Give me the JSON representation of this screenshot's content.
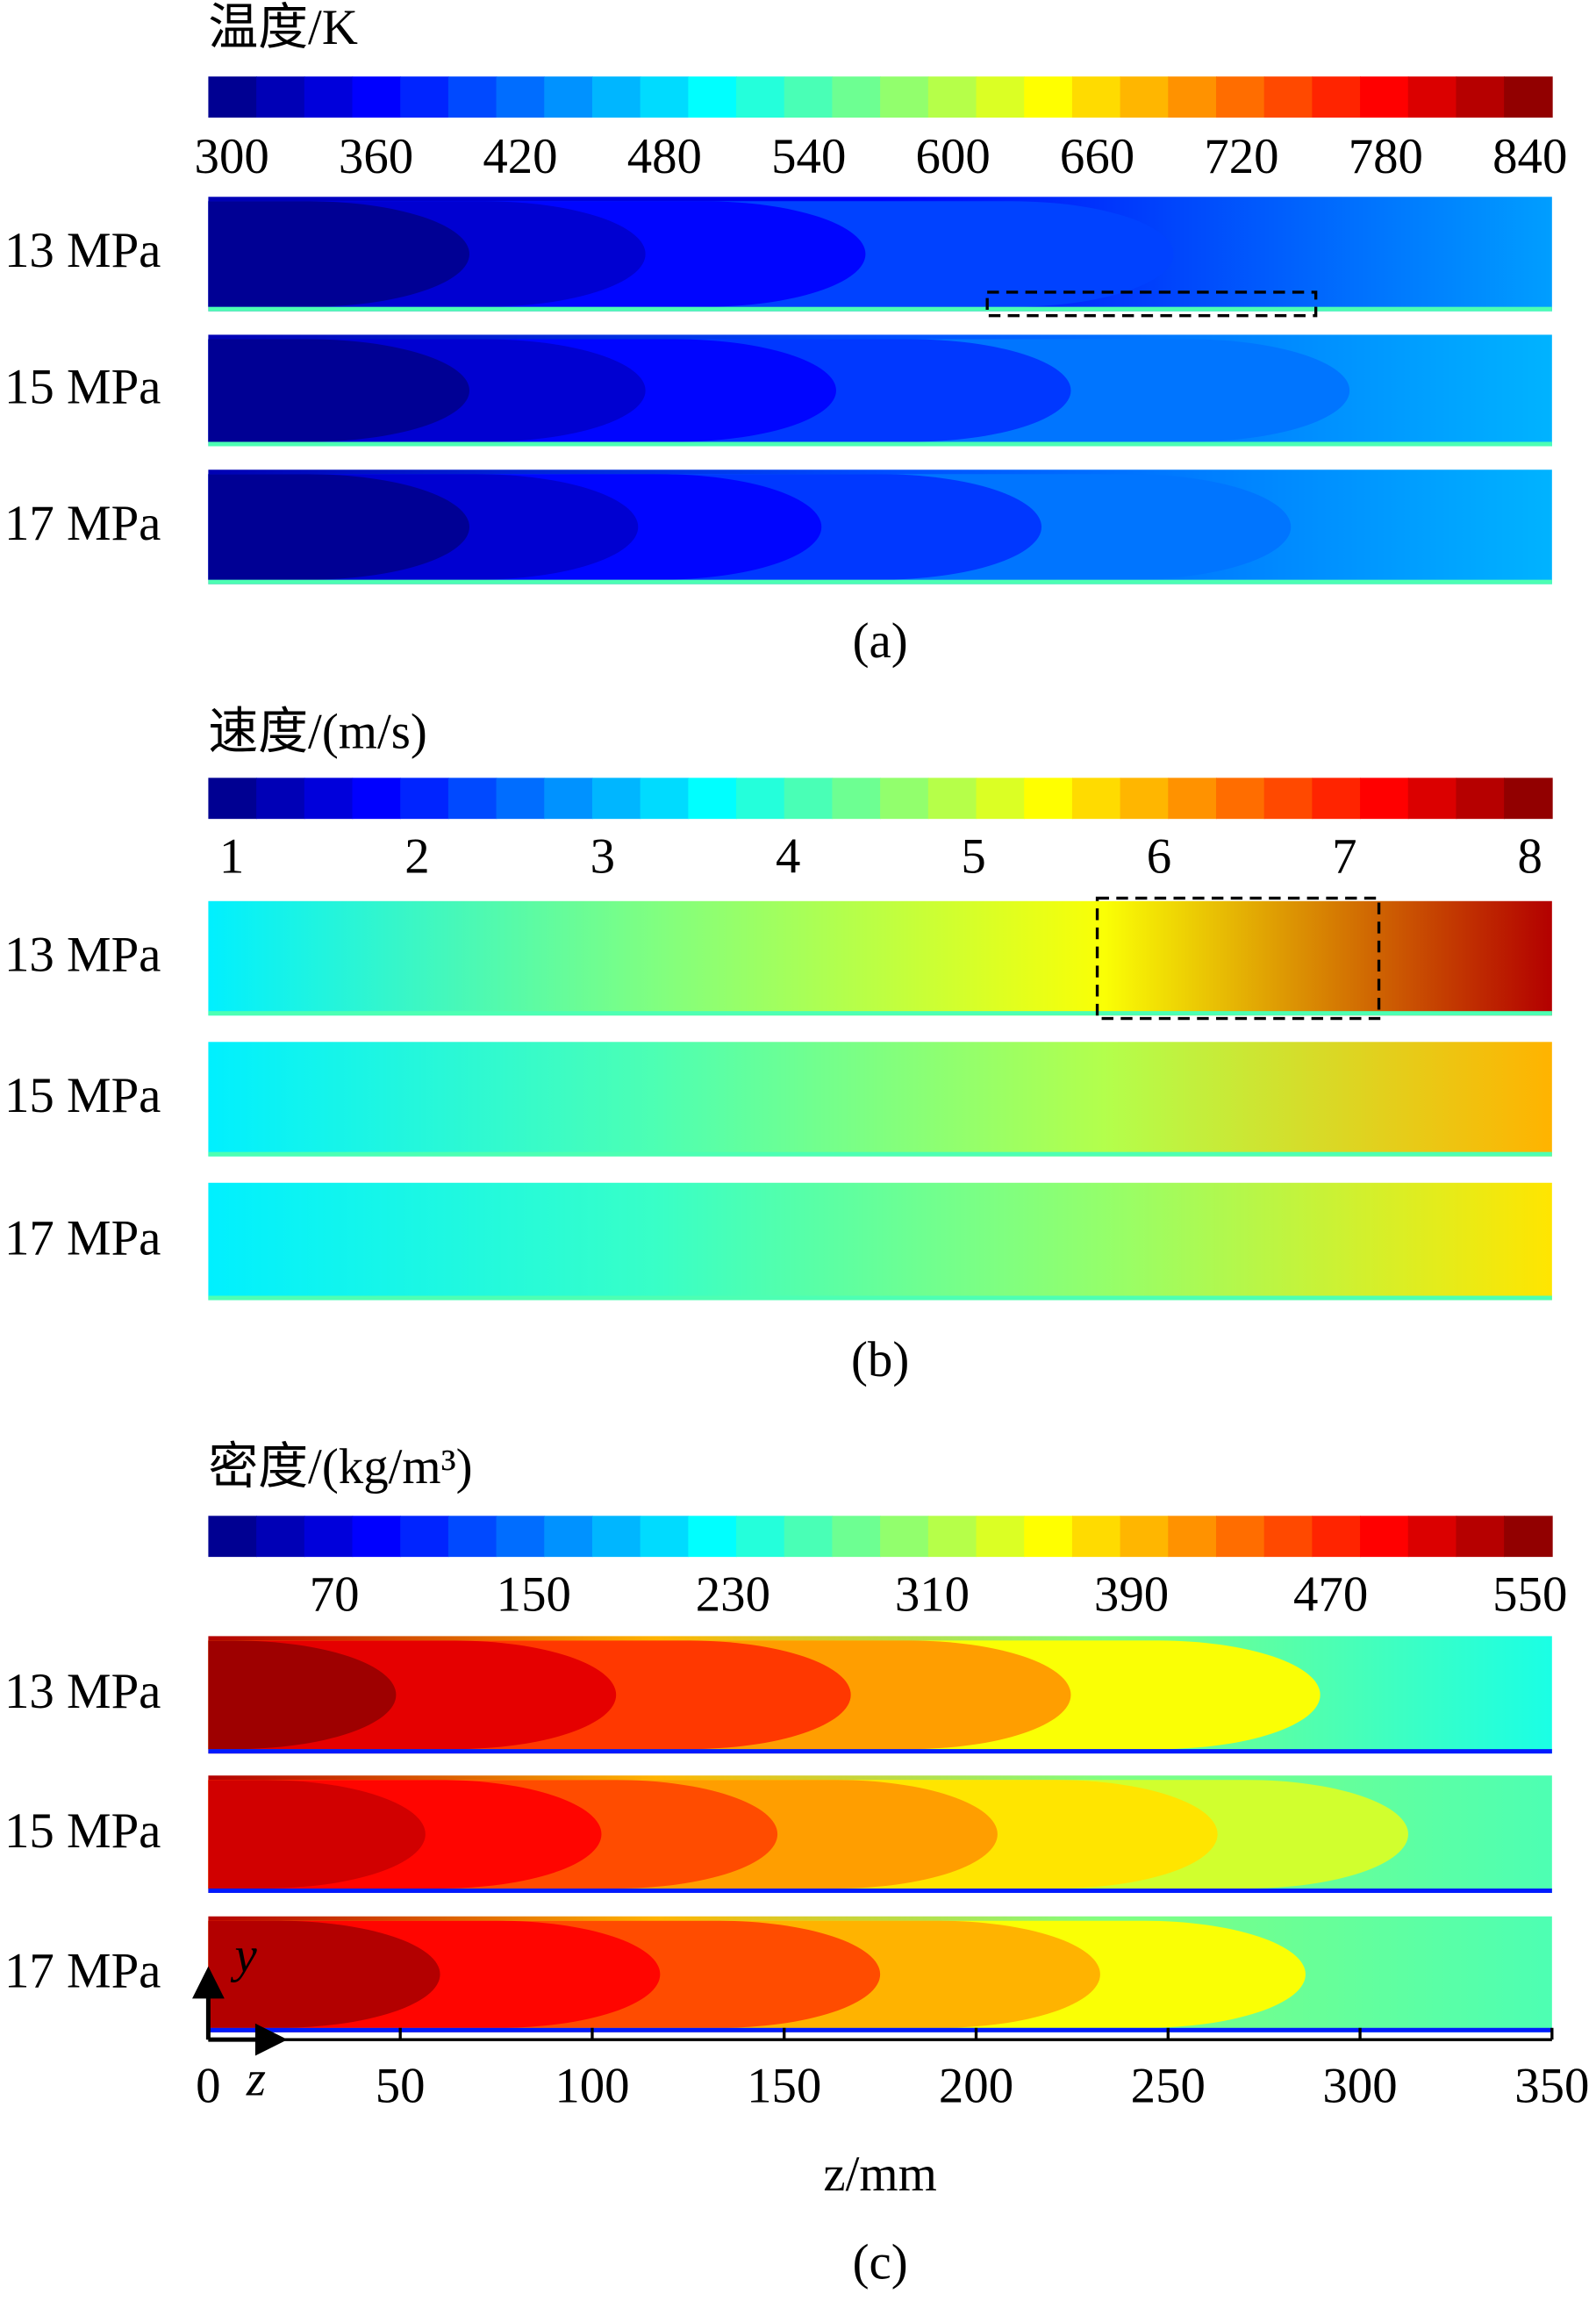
{
  "panels": [
    {
      "title": "温度/K",
      "colorbar_ticks": [
        300,
        360,
        420,
        480,
        540,
        600,
        660,
        720,
        780,
        840
      ],
      "rows": [
        "13 MPa",
        "15 MPa",
        "17 MPa"
      ],
      "caption": "(a)"
    },
    {
      "title": "速度/(m/s)",
      "colorbar_ticks": [
        1,
        2,
        3,
        4,
        5,
        6,
        7,
        8
      ],
      "rows": [
        "13 MPa",
        "15 MPa",
        "17 MPa"
      ],
      "caption": "(b)"
    },
    {
      "title": "密度/(kg/m³)",
      "colorbar_ticks": [
        70,
        150,
        230,
        310,
        390,
        470,
        550
      ],
      "rows": [
        "13 MPa",
        "15 MPa",
        "17 MPa"
      ],
      "caption": "(c)"
    }
  ],
  "x_axis": {
    "ticks": [
      0,
      50,
      100,
      150,
      200,
      250,
      300,
      350
    ],
    "label": "z/mm"
  },
  "axis_arrows": {
    "y": "y",
    "z": "z"
  }
}
